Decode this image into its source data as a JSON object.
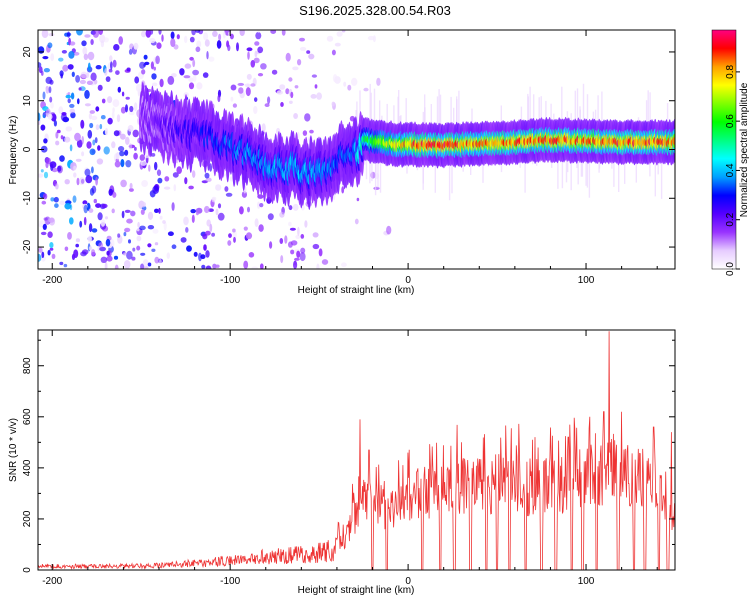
{
  "title": "S196.2025.328.00.54.R03",
  "chart_data": [
    {
      "type": "heatmap",
      "title": "S196.2025.328.00.54.R03",
      "xlabel": "Height of straight line (km)",
      "ylabel": "Frequency (Hz)",
      "xlim": [
        -208,
        150
      ],
      "ylim": [
        -24.5,
        24.5
      ],
      "x_ticks": [
        "-200",
        "-100",
        "0",
        "100"
      ],
      "x_tick_values": [
        -200,
        -100,
        0,
        100
      ],
      "y_ticks": [
        "-20",
        "-10",
        "0",
        "10",
        "20"
      ],
      "y_tick_values": [
        -20,
        -10,
        0,
        10,
        20
      ],
      "colorbar": {
        "label": "Normalized spectral amplitude",
        "range": [
          0.0,
          0.97
        ],
        "ticks": [
          "0.0",
          "0.2",
          "0.4",
          "0.6",
          "0.8"
        ],
        "tick_values": [
          0.0,
          0.2,
          0.4,
          0.6,
          0.8
        ],
        "colors": [
          "#ffffff",
          "#e6ccff",
          "#9933ff",
          "#5500ff",
          "#0000ff",
          "#00a0ff",
          "#00ffff",
          "#00ff80",
          "#00ff00",
          "#80ff00",
          "#ffff00",
          "#ffa000",
          "#ff0000",
          "#ff0080"
        ]
      },
      "ridge": {
        "x": [
          -150,
          -130,
          -110,
          -95,
          -80,
          -65,
          -50,
          -40,
          -32,
          -25,
          -15,
          -5,
          5,
          20,
          40,
          60,
          80,
          100,
          120,
          150
        ],
        "y": [
          6,
          4,
          2,
          0,
          -3,
          -4,
          -5,
          -2,
          -2,
          2,
          1.5,
          1,
          1,
          0.8,
          1.2,
          1.5,
          2,
          1.8,
          1.5,
          1.5
        ],
        "peak_amplitude": [
          0.18,
          0.25,
          0.32,
          0.38,
          0.4,
          0.42,
          0.42,
          0.35,
          0.35,
          0.55,
          0.7,
          0.8,
          0.9,
          0.92,
          0.85,
          0.88,
          0.9,
          0.88,
          0.9,
          0.88
        ]
      }
    },
    {
      "type": "line",
      "xlabel": "Height of straight line (km)",
      "ylabel": "SNR (10 * v/v)",
      "xlim": [
        -208,
        150
      ],
      "ylim": [
        0,
        940
      ],
      "x_ticks": [
        "-200",
        "-100",
        "0",
        "100"
      ],
      "x_tick_values": [
        -200,
        -100,
        0,
        100
      ],
      "y_ticks": [
        "0",
        "200",
        "400",
        "600",
        "800"
      ],
      "y_tick_values": [
        0,
        200,
        400,
        600,
        800
      ],
      "color": "#ee3333",
      "series": [
        {
          "name": "SNR",
          "envelope_x": [
            -208,
            -180,
            -160,
            -140,
            -120,
            -100,
            -90,
            -80,
            -60,
            -45,
            -35,
            -30,
            -26,
            -20,
            -10,
            0,
            10,
            20,
            30,
            40,
            50,
            60,
            70,
            80,
            90,
            100,
            105,
            110,
            113,
            120,
            130,
            140,
            145,
            150
          ],
          "envelope_y": [
            20,
            20,
            20,
            25,
            35,
            50,
            60,
            70,
            80,
            100,
            150,
            250,
            320,
            300,
            280,
            330,
            360,
            380,
            390,
            390,
            400,
            390,
            380,
            400,
            400,
            420,
            440,
            440,
            500,
            440,
            420,
            410,
            350,
            250
          ],
          "peaks_x": [
            -27,
            -22,
            0,
            30,
            70,
            90,
            102,
            110,
            113,
            120,
            138,
            148
          ],
          "peaks_y": [
            590,
            470,
            460,
            500,
            510,
            520,
            600,
            620,
            935,
            620,
            560,
            540
          ],
          "dropout_x": [
            -20,
            -12,
            8,
            18,
            26,
            35,
            44,
            50,
            57,
            66,
            75,
            83,
            92,
            98,
            106,
            118,
            127,
            133,
            141,
            146
          ]
        }
      ]
    }
  ]
}
